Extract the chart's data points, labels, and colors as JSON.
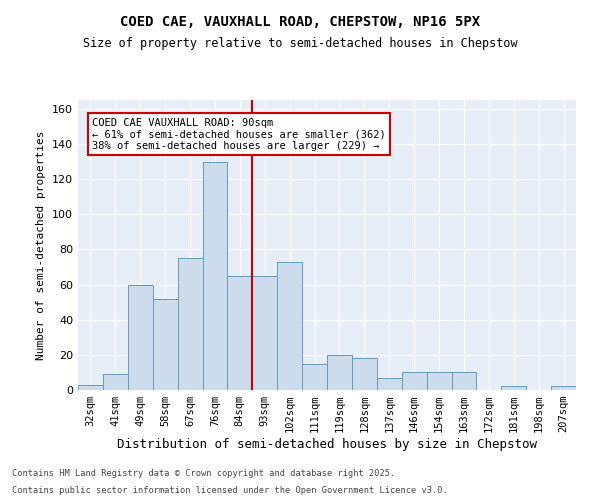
{
  "title": "COED CAE, VAUXHALL ROAD, CHEPSTOW, NP16 5PX",
  "subtitle": "Size of property relative to semi-detached houses in Chepstow",
  "xlabel": "Distribution of semi-detached houses by size in Chepstow",
  "ylabel": "Number of semi-detached properties",
  "categories": [
    "32sqm",
    "41sqm",
    "49sqm",
    "58sqm",
    "67sqm",
    "76sqm",
    "84sqm",
    "93sqm",
    "102sqm",
    "111sqm",
    "119sqm",
    "128sqm",
    "137sqm",
    "146sqm",
    "154sqm",
    "163sqm",
    "172sqm",
    "181sqm",
    "198sqm",
    "207sqm"
  ],
  "values": [
    3,
    9,
    60,
    52,
    75,
    130,
    65,
    65,
    73,
    15,
    20,
    18,
    7,
    10,
    10,
    10,
    0,
    2,
    0,
    2
  ],
  "bar_color": "#ccdcec",
  "bar_edge_color": "#6699bb",
  "vline_color": "#cc0000",
  "annotation_title": "COED CAE VAUXHALL ROAD: 90sqm",
  "annotation_line1": "← 61% of semi-detached houses are smaller (362)",
  "annotation_line2": "38% of semi-detached houses are larger (229) →",
  "ylim": [
    0,
    165
  ],
  "yticks": [
    0,
    20,
    40,
    60,
    80,
    100,
    120,
    140,
    160
  ],
  "bg_color": "#e8eef8",
  "footnote1": "Contains HM Land Registry data © Crown copyright and database right 2025.",
  "footnote2": "Contains public sector information licensed under the Open Government Licence v3.0."
}
